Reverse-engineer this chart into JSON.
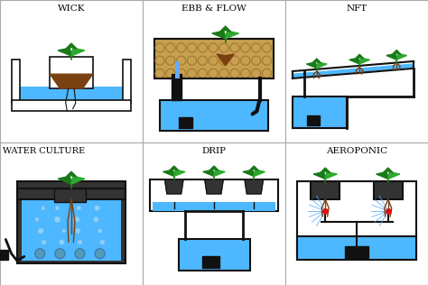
{
  "panels": [
    "WICK",
    "EBB & FLOW",
    "NFT",
    "WATER CULTURE",
    "DRIP",
    "AEROPONIC"
  ],
  "bg_color": "#ffffff",
  "water_blue": "#4db8ff",
  "dark_blue": "#2288cc",
  "plant_dark": "#1a7a1a",
  "plant_mid": "#2ea82e",
  "plant_light": "#44cc44",
  "brown": "#7a4010",
  "tan": "#c8a050",
  "tan_dark": "#a07830",
  "black": "#111111",
  "gray": "#888888",
  "light_gray": "#cccccc",
  "dark_gray": "#333333",
  "red": "#dd1111"
}
